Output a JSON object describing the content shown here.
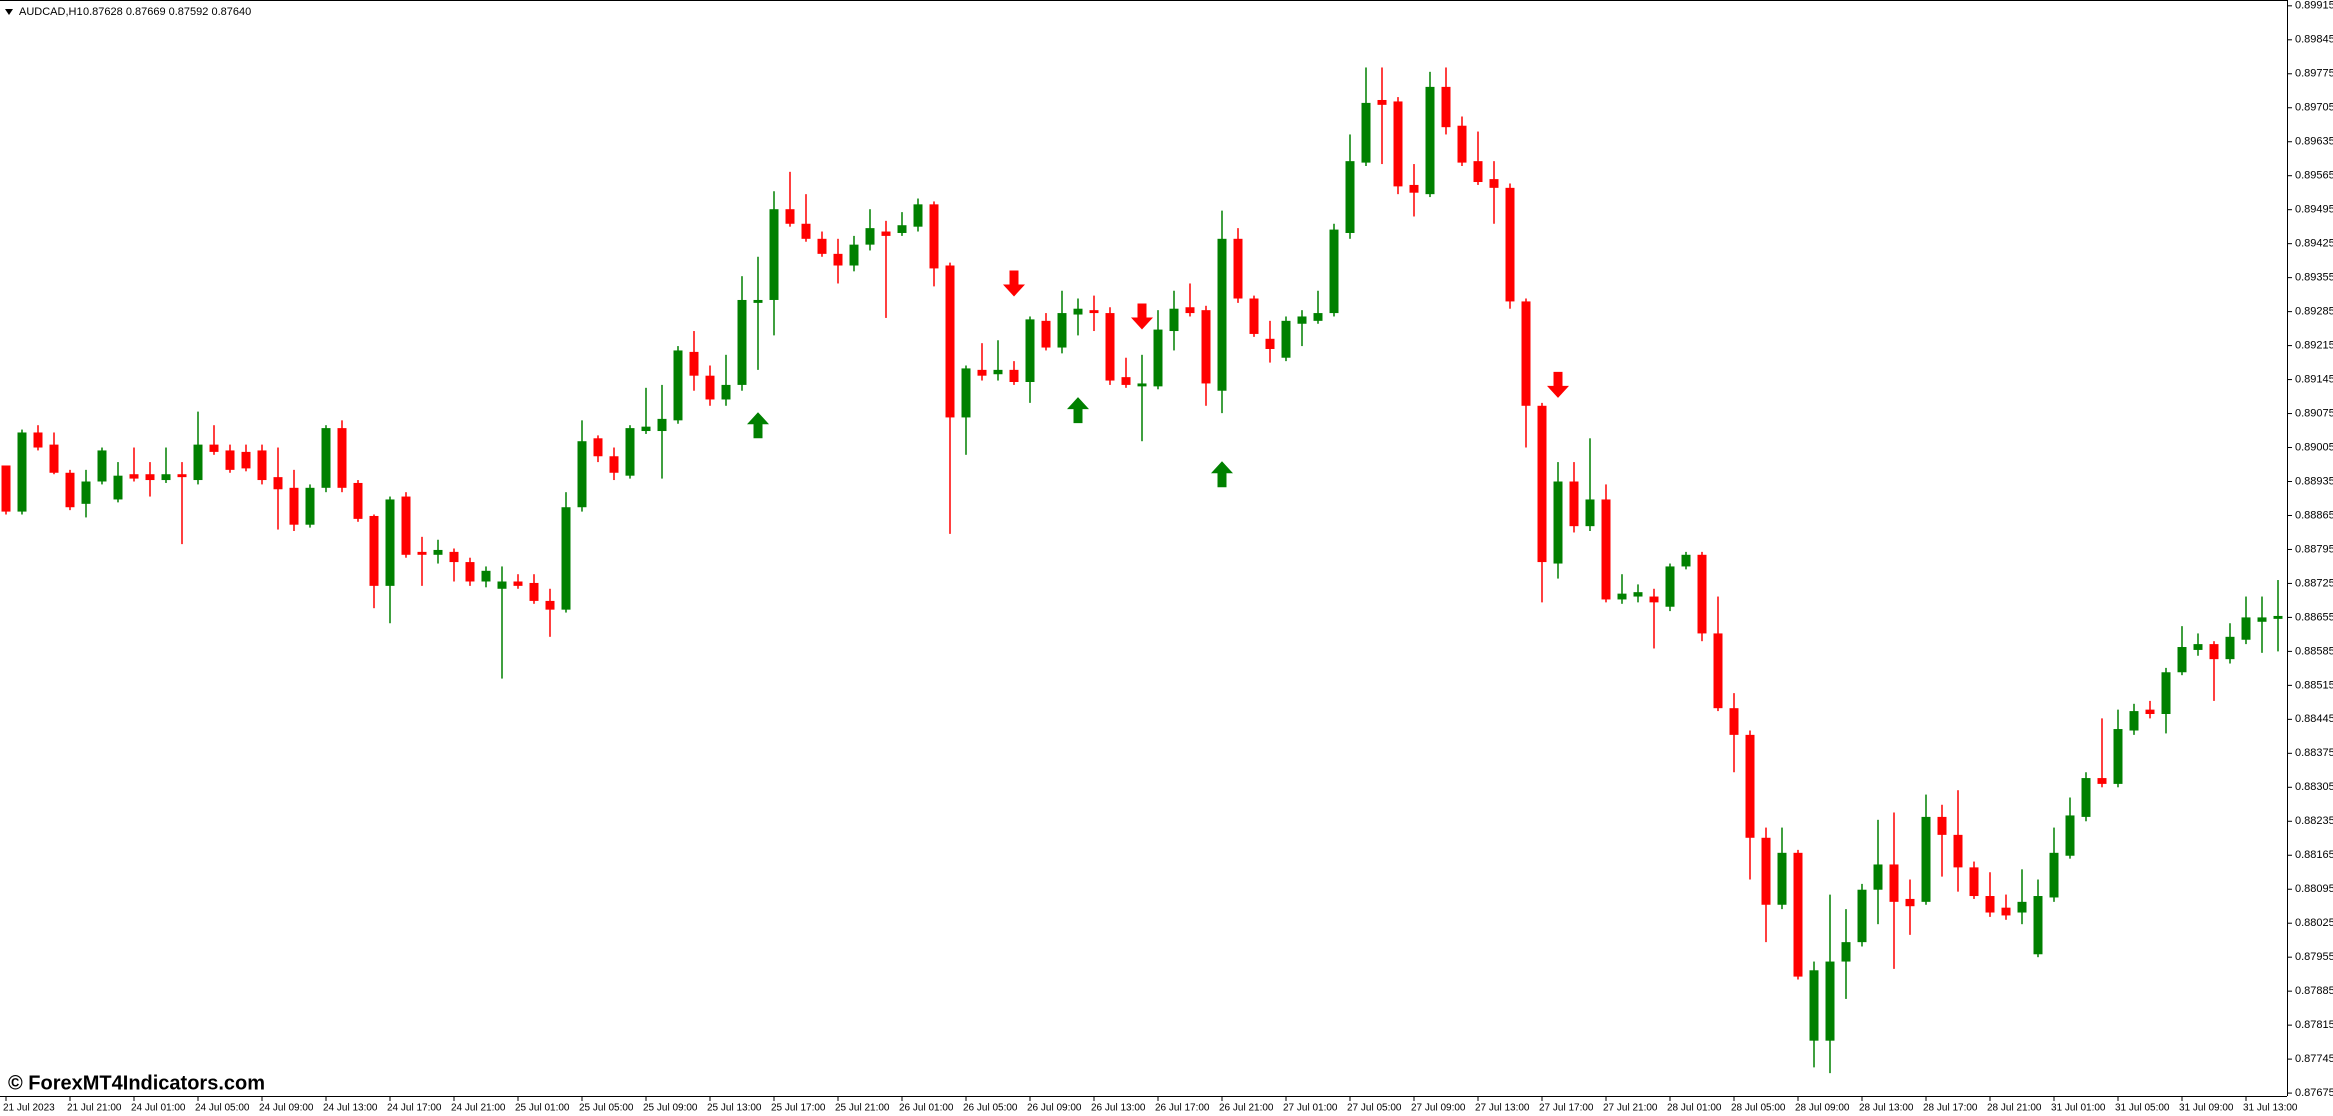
{
  "chart_data": {
    "type": "candlestick",
    "title": "AUDCAD,H1",
    "subtitle": "0.87628 0.87669 0.87592 0.87640",
    "watermark": "© ForexMT4Indicators.com",
    "up_color": "#008000",
    "down_color": "#ff0000",
    "grid": false,
    "ylim": [
      0.87669,
      0.89927
    ],
    "yticks": [
      0.87675,
      0.87745,
      0.87815,
      0.87885,
      0.87955,
      0.88025,
      0.88095,
      0.88165,
      0.88235,
      0.88305,
      0.88375,
      0.88445,
      0.88515,
      0.88585,
      0.88655,
      0.88725,
      0.88795,
      0.88865,
      0.88935,
      0.89005,
      0.89075,
      0.89145,
      0.89215,
      0.89285,
      0.89355,
      0.89425,
      0.89495,
      0.89565,
      0.89635,
      0.89705,
      0.89775,
      0.89845,
      0.89915
    ],
    "categories": [
      "21 Jul 2023",
      null,
      null,
      null,
      "21 Jul 21:00",
      null,
      null,
      null,
      "24 Jul 01:00",
      null,
      null,
      null,
      "24 Jul 05:00",
      null,
      null,
      null,
      "24 Jul 09:00",
      null,
      null,
      null,
      "24 Jul 13:00",
      null,
      null,
      null,
      "24 Jul 17:00",
      null,
      null,
      null,
      "24 Jul 21:00",
      null,
      null,
      null,
      "25 Jul 01:00",
      null,
      null,
      null,
      "25 Jul 05:00",
      null,
      null,
      null,
      "25 Jul 09:00",
      null,
      null,
      null,
      "25 Jul 13:00",
      null,
      null,
      null,
      "25 Jul 17:00",
      null,
      null,
      null,
      "25 Jul 21:00",
      null,
      null,
      null,
      "26 Jul 01:00",
      null,
      null,
      null,
      "26 Jul 05:00",
      null,
      null,
      null,
      "26 Jul 09:00",
      null,
      null,
      null,
      "26 Jul 13:00",
      null,
      null,
      null,
      "26 Jul 17:00",
      null,
      null,
      null,
      "26 Jul 21:00",
      null,
      null,
      null,
      "27 Jul 01:00",
      null,
      null,
      null,
      "27 Jul 05:00",
      null,
      null,
      null,
      "27 Jul 09:00",
      null,
      null,
      null,
      "27 Jul 13:00",
      null,
      null,
      null,
      "27 Jul 17:00",
      null,
      null,
      null,
      "27 Jul 21:00",
      null,
      null,
      null,
      "28 Jul 01:00",
      null,
      null,
      null,
      "28 Jul 05:00",
      null,
      null,
      null,
      "28 Jul 09:00",
      null,
      null,
      null,
      "28 Jul 13:00",
      null,
      null,
      null,
      "28 Jul 17:00",
      null,
      null,
      null,
      "28 Jul 21:00",
      null,
      null,
      null,
      "31 Jul 01:00",
      null,
      null,
      null,
      "31 Jul 05:00",
      null,
      null,
      null,
      "31 Jul 09:00",
      null,
      null,
      null,
      "31 Jul 13:00",
      null,
      null
    ],
    "open": [
      0.88968,
      0.88873,
      0.89036,
      0.89011,
      0.88953,
      0.88889,
      0.88935,
      0.88898,
      0.8895,
      0.8895,
      0.88938,
      0.8895,
      0.88938,
      0.89011,
      0.88999,
      0.88996,
      0.88999,
      0.88944,
      0.88922,
      0.88846,
      0.88922,
      0.89045,
      0.88932,
      0.88864,
      0.8872,
      0.88904,
      0.8879,
      0.88784,
      0.8879,
      0.88769,
      0.88729,
      0.88714,
      0.88729,
      0.88726,
      0.88689,
      0.88671,
      0.88882,
      0.89024,
      0.88987,
      0.88947,
      0.89039,
      0.89039,
      0.89061,
      0.89202,
      0.89153,
      0.89104,
      0.89134,
      0.89303,
      0.89309,
      0.89496,
      0.89466,
      0.89435,
      0.89404,
      0.8938,
      0.89423,
      0.8945,
      0.89447,
      0.8946,
      0.89506,
      0.8938,
      0.89067,
      0.89165,
      0.89156,
      0.89165,
      0.8914,
      0.89266,
      0.89211,
      0.89279,
      0.89288,
      0.89282,
      0.8915,
      0.89131,
      0.89131,
      0.89245,
      0.89294,
      0.89288,
      0.89122,
      0.89435,
      0.89312,
      0.89229,
      0.8919,
      0.8926,
      0.89266,
      0.89282,
      0.89447,
      0.89592,
      0.89721,
      0.89718,
      0.89546,
      0.89527,
      0.89748,
      0.89668,
      0.89595,
      0.89558,
      0.8954,
      0.89306,
      0.89091,
      0.88766,
      0.88935,
      0.88843,
      0.88898,
      0.88692,
      0.88698,
      0.88698,
      0.88677,
      0.8876,
      0.88784,
      0.88622,
      0.88468,
      0.88413,
      0.88201,
      0.88063,
      0.8817,
      0.87783,
      0.87783,
      0.87946,
      0.87986,
      0.88094,
      0.88146,
      0.88075,
      0.88069,
      0.88244,
      0.88207,
      0.8814,
      0.88081,
      0.88057,
      0.88047,
      0.87961,
      0.88078,
      0.88164,
      0.88244,
      0.88324,
      0.88312,
      0.88422,
      0.88465,
      0.88456,
      0.88542,
      0.88588,
      0.886,
      0.88569,
      0.88609,
      0.88646,
      0.88652
    ],
    "high": [
      0.88968,
      0.89042,
      0.89051,
      0.89036,
      0.88959,
      0.88959,
      0.89005,
      0.88975,
      0.89005,
      0.88975,
      0.89005,
      0.88975,
      0.89079,
      0.89051,
      0.89011,
      0.89011,
      0.89011,
      0.89005,
      0.88959,
      0.88929,
      0.89051,
      0.89061,
      0.88938,
      0.88867,
      0.88904,
      0.88913,
      0.88821,
      0.88815,
      0.88797,
      0.88778,
      0.8876,
      0.8876,
      0.88744,
      0.88744,
      0.88714,
      0.88913,
      0.89061,
      0.8903,
      0.89005,
      0.89051,
      0.89128,
      0.89134,
      0.89214,
      0.89245,
      0.89174,
      0.89196,
      0.89358,
      0.89398,
      0.89533,
      0.89573,
      0.89527,
      0.8945,
      0.89435,
      0.89441,
      0.89496,
      0.89472,
      0.8949,
      0.89518,
      0.89512,
      0.89386,
      0.89174,
      0.8922,
      0.89226,
      0.89183,
      0.89275,
      0.89282,
      0.89328,
      0.89312,
      0.89318,
      0.89294,
      0.8919,
      0.89196,
      0.89288,
      0.89328,
      0.89343,
      0.89297,
      0.89493,
      0.89457,
      0.89318,
      0.89266,
      0.89275,
      0.89288,
      0.89328,
      0.89466,
      0.8965,
      0.89788,
      0.89788,
      0.89727,
      0.89589,
      0.89779,
      0.89788,
      0.89687,
      0.89656,
      0.89595,
      0.89549,
      0.89312,
      0.89097,
      0.88975,
      0.88975,
      0.89024,
      0.88929,
      0.88744,
      0.88723,
      0.88714,
      0.88766,
      0.8879,
      0.8879,
      0.88698,
      0.88499,
      0.88422,
      0.88222,
      0.88222,
      0.88176,
      0.87946,
      0.88084,
      0.88054,
      0.88106,
      0.88238,
      0.88253,
      0.88115,
      0.8829,
      0.88269,
      0.88299,
      0.88152,
      0.8813,
      0.88084,
      0.88136,
      0.88115,
      0.88222,
      0.88284,
      0.88336,
      0.88447,
      0.88465,
      0.88477,
      0.88483,
      0.88551,
      0.88637,
      0.88622,
      0.88606,
      0.88643,
      0.88698,
      0.88698,
      0.88732
    ],
    "low": [
      0.88867,
      0.88867,
      0.88999,
      0.8895,
      0.88876,
      0.88861,
      0.88929,
      0.88892,
      0.88935,
      0.88904,
      0.88932,
      0.88806,
      0.88929,
      0.8899,
      0.88953,
      0.88956,
      0.88929,
      0.88836,
      0.88833,
      0.8884,
      0.88913,
      0.88913,
      0.88852,
      0.88674,
      0.88643,
      0.88778,
      0.8872,
      0.88766,
      0.88729,
      0.8872,
      0.88717,
      0.88529,
      0.88714,
      0.88683,
      0.88615,
      0.88665,
      0.88873,
      0.88975,
      0.88938,
      0.88941,
      0.89033,
      0.88941,
      0.89054,
      0.89122,
      0.89091,
      0.89091,
      0.89122,
      0.89165,
      0.89236,
      0.8946,
      0.89429,
      0.89398,
      0.89343,
      0.89368,
      0.89411,
      0.89272,
      0.89441,
      0.8945,
      0.89337,
      0.88827,
      0.8899,
      0.89143,
      0.89143,
      0.89134,
      0.89097,
      0.89205,
      0.89199,
      0.89236,
      0.89245,
      0.89134,
      0.89128,
      0.89018,
      0.89125,
      0.89205,
      0.89275,
      0.89091,
      0.89076,
      0.89303,
      0.89233,
      0.8918,
      0.89183,
      0.89214,
      0.8926,
      0.89275,
      0.89435,
      0.89585,
      0.89589,
      0.89527,
      0.89481,
      0.89521,
      0.8965,
      0.89585,
      0.89546,
      0.89466,
      0.89291,
      0.89005,
      0.88686,
      0.88735,
      0.8883,
      0.88833,
      0.88686,
      0.88683,
      0.88686,
      0.88591,
      0.88668,
      0.88754,
      0.88606,
      0.88462,
      0.88336,
      0.88115,
      0.87986,
      0.88054,
      0.87909,
      0.87728,
      0.87716,
      0.87869,
      0.87977,
      0.88023,
      0.87931,
      0.88001,
      0.88063,
      0.88121,
      0.8809,
      0.88075,
      0.88038,
      0.88032,
      0.88023,
      0.87955,
      0.88069,
      0.88158,
      0.88235,
      0.88305,
      0.88305,
      0.88413,
      0.88447,
      0.88416,
      0.88536,
      0.88576,
      0.88483,
      0.8856,
      0.886,
      0.88582,
      0.88585
    ],
    "close": [
      0.88873,
      0.89036,
      0.89005,
      0.88953,
      0.88882,
      0.88935,
      0.88999,
      0.88947,
      0.88941,
      0.88938,
      0.8895,
      0.88944,
      0.89011,
      0.88996,
      0.88959,
      0.88962,
      0.88938,
      0.88919,
      0.88846,
      0.88922,
      0.89045,
      0.88922,
      0.88858,
      0.8872,
      0.88898,
      0.88784,
      0.88784,
      0.88794,
      0.88769,
      0.88729,
      0.88751,
      0.88729,
      0.8872,
      0.88689,
      0.88671,
      0.88882,
      0.89018,
      0.88987,
      0.88953,
      0.89045,
      0.89048,
      0.89064,
      0.89205,
      0.89153,
      0.89104,
      0.89134,
      0.89309,
      0.89309,
      0.89496,
      0.89466,
      0.89435,
      0.89404,
      0.8938,
      0.89423,
      0.89457,
      0.89441,
      0.89463,
      0.89506,
      0.89374,
      0.89067,
      0.89168,
      0.89153,
      0.89165,
      0.8914,
      0.89269,
      0.89211,
      0.89282,
      0.89291,
      0.89282,
      0.89143,
      0.89134,
      0.89137,
      0.89248,
      0.89291,
      0.89282,
      0.89137,
      0.89435,
      0.89312,
      0.89239,
      0.89208,
      0.89266,
      0.89275,
      0.89282,
      0.89454,
      0.89595,
      0.89715,
      0.89711,
      0.89543,
      0.8953,
      0.89748,
      0.89665,
      0.89592,
      0.89552,
      0.8954,
      0.89306,
      0.89091,
      0.88769,
      0.88935,
      0.88843,
      0.88898,
      0.88692,
      0.88704,
      0.88707,
      0.88686,
      0.8876,
      0.88784,
      0.88622,
      0.88468,
      0.88413,
      0.88201,
      0.88063,
      0.8817,
      0.87915,
      0.87928,
      0.87946,
      0.87986,
      0.88094,
      0.88146,
      0.88069,
      0.8806,
      0.88244,
      0.88207,
      0.8814,
      0.88081,
      0.88047,
      0.88041,
      0.88069,
      0.88081,
      0.8817,
      0.88247,
      0.88324,
      0.88312,
      0.88425,
      0.88462,
      0.88456,
      0.88542,
      0.88594,
      0.886,
      0.88569,
      0.88615,
      0.88655,
      0.88655,
      0.88658
    ],
    "up_arrows": {
      "color": "#008000",
      "values": [
        null,
        null,
        null,
        null,
        null,
        null,
        null,
        null,
        null,
        null,
        null,
        null,
        null,
        null,
        null,
        null,
        null,
        null,
        null,
        null,
        null,
        null,
        null,
        null,
        null,
        null,
        null,
        null,
        null,
        null,
        null,
        null,
        null,
        null,
        null,
        null,
        null,
        null,
        null,
        null,
        null,
        null,
        null,
        null,
        null,
        null,
        null,
        0.89051,
        null,
        null,
        null,
        null,
        null,
        null,
        null,
        null,
        null,
        null,
        null,
        null,
        null,
        null,
        null,
        null,
        null,
        null,
        null,
        0.89082,
        null,
        null,
        null,
        null,
        null,
        null,
        null,
        null,
        0.8895,
        null,
        null,
        null,
        null,
        null,
        null,
        null,
        null,
        null,
        null,
        null,
        null,
        null,
        null,
        null,
        null,
        null,
        null,
        null,
        null,
        null,
        null,
        null,
        null,
        null,
        null,
        null,
        null,
        null,
        null,
        null,
        null,
        null,
        null,
        null,
        null,
        null,
        null,
        null,
        null,
        null,
        null,
        null,
        null,
        null,
        null,
        null,
        null,
        null,
        null,
        null,
        null,
        null,
        null,
        null,
        null,
        null,
        null,
        null,
        null,
        null,
        null,
        null,
        null,
        null,
        null
      ]
    },
    "down_arrows": {
      "color": "#ff0000",
      "values": [
        null,
        null,
        null,
        null,
        null,
        null,
        null,
        null,
        null,
        null,
        null,
        null,
        null,
        null,
        null,
        null,
        null,
        null,
        null,
        null,
        null,
        null,
        null,
        null,
        null,
        null,
        null,
        null,
        null,
        null,
        null,
        null,
        null,
        null,
        null,
        null,
        null,
        null,
        null,
        null,
        null,
        null,
        null,
        null,
        null,
        null,
        null,
        null,
        null,
        null,
        null,
        null,
        null,
        null,
        null,
        null,
        null,
        null,
        null,
        null,
        null,
        null,
        null,
        0.89343,
        null,
        null,
        null,
        null,
        null,
        null,
        null,
        0.89275,
        null,
        null,
        null,
        null,
        null,
        null,
        null,
        null,
        null,
        null,
        null,
        null,
        null,
        null,
        null,
        null,
        null,
        null,
        null,
        null,
        null,
        null,
        null,
        null,
        null,
        0.89134,
        null,
        null,
        null,
        null,
        null,
        null,
        null,
        null,
        null,
        null,
        null,
        null,
        null,
        null,
        null,
        null,
        null,
        null,
        null,
        null,
        null,
        null,
        null,
        null,
        null,
        null,
        null,
        null,
        null,
        null,
        null,
        null,
        null,
        null,
        null,
        null,
        null,
        null,
        null,
        null,
        null,
        null,
        null,
        null,
        null
      ]
    }
  }
}
